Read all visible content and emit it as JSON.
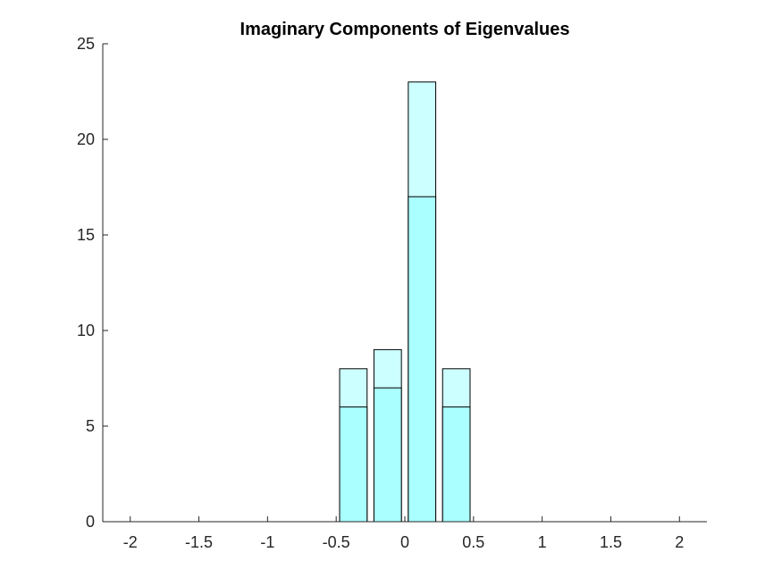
{
  "chart_data": {
    "type": "bar",
    "title": "Imaginary Components of Eigenvalues",
    "xlabel": "",
    "ylabel": "",
    "xlim": [
      -2.2,
      2.2
    ],
    "ylim": [
      0,
      25
    ],
    "xticks": [
      -2,
      -1.5,
      -1,
      -0.5,
      0,
      0.5,
      1,
      1.5,
      2
    ],
    "xtick_labels": [
      "-2",
      "-1.5",
      "-1",
      "-0.5",
      "0",
      "0.5",
      "1",
      "1.5",
      "2"
    ],
    "yticks": [
      0,
      5,
      10,
      15,
      20,
      25
    ],
    "ytick_labels": [
      "0",
      "5",
      "10",
      "15",
      "20",
      "25"
    ],
    "grid": false,
    "bar_width": 0.2,
    "x": [
      -0.375,
      -0.125,
      0.125,
      0.375
    ],
    "series": [
      {
        "values": [
          6,
          7,
          17,
          6
        ],
        "color": "#aaffff"
      },
      {
        "values": [
          8,
          9,
          23,
          8
        ],
        "color": "#ccffff"
      }
    ],
    "edge_color": "#000000"
  }
}
